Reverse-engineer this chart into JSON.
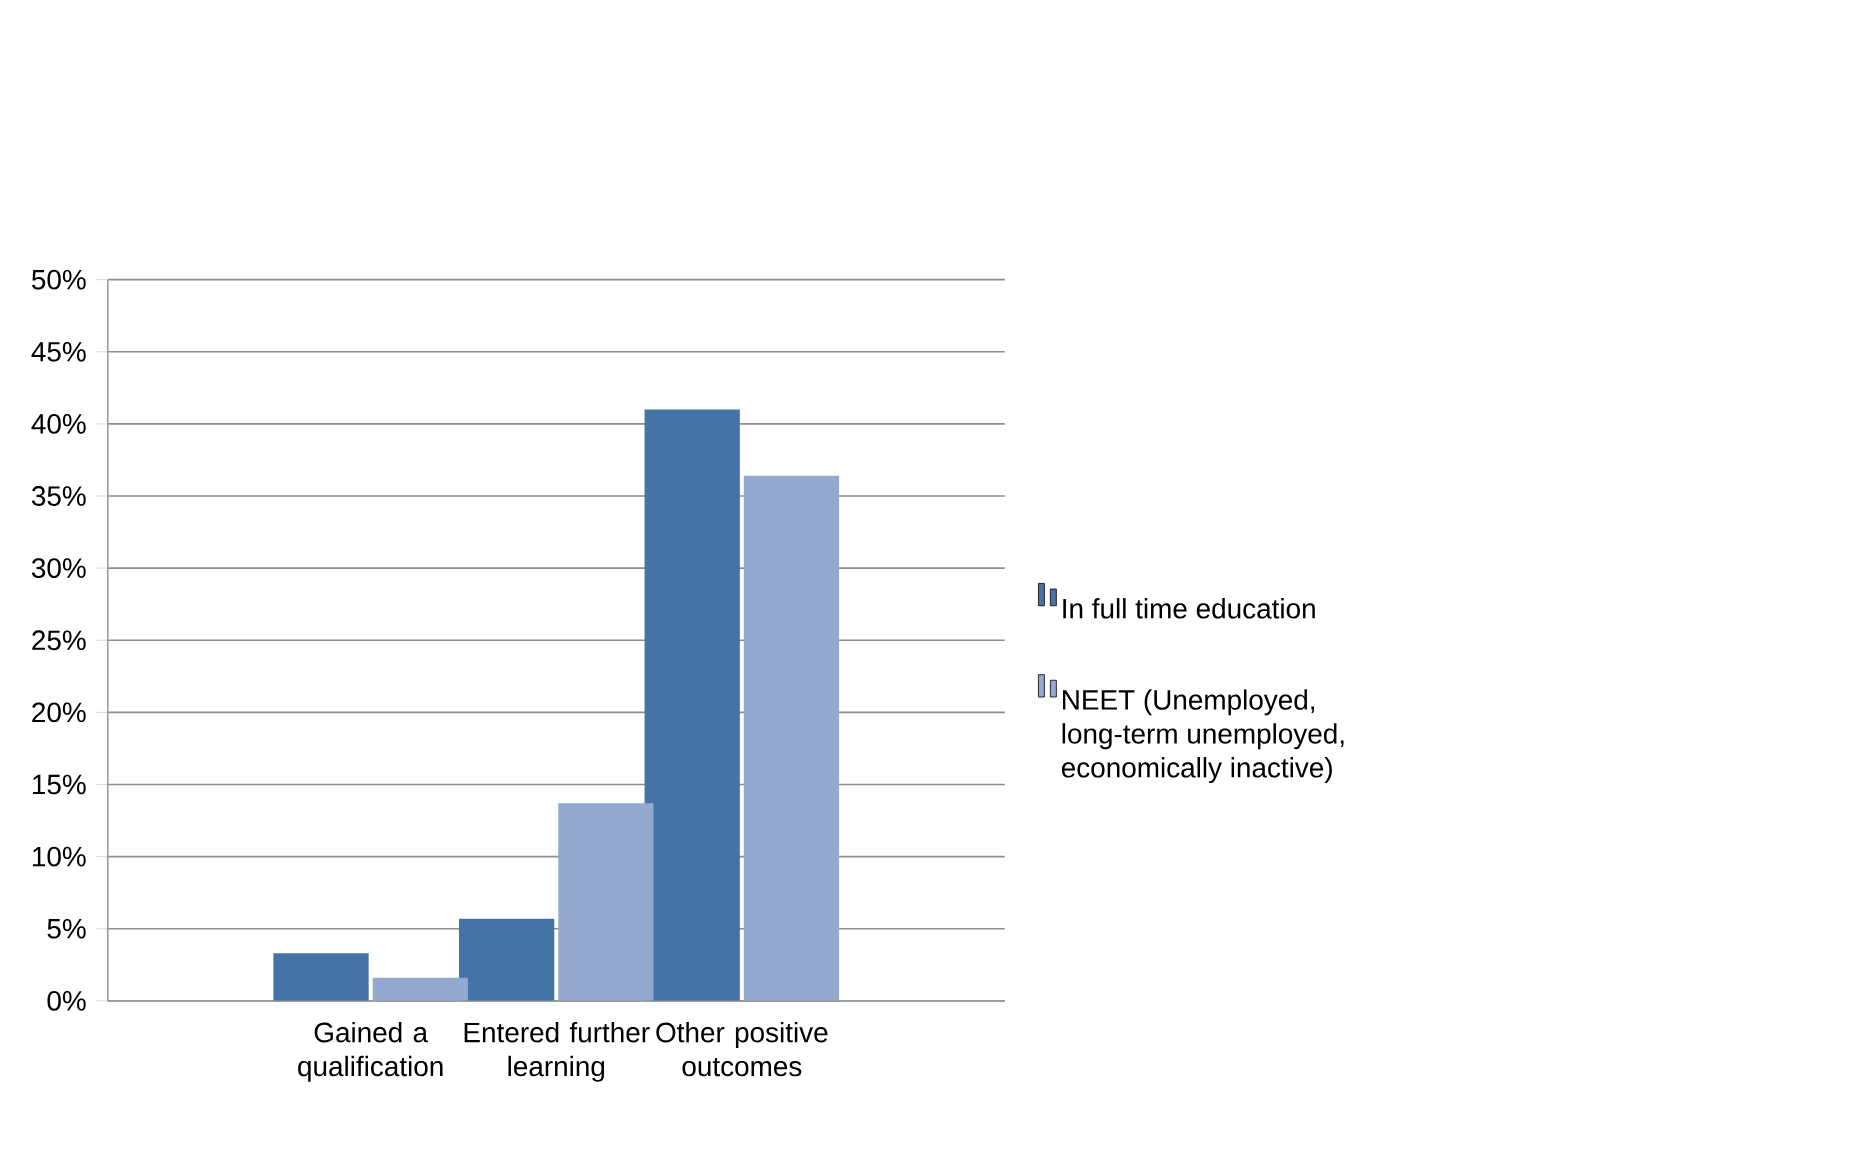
{
  "chart_data": {
    "type": "bar",
    "categories": [
      "Gained a qualification",
      "Entered further learning",
      "Other positive outcomes"
    ],
    "series": [
      {
        "name": "In full time education",
        "color": "#4572a7",
        "values": [
          3.3,
          5.7,
          41
        ]
      },
      {
        "name": "NEET (Unemployed, long-term unemployed, economically inactive)",
        "color": "#93a9cf",
        "values": [
          1.6,
          13.7,
          36.4
        ]
      }
    ],
    "ylim": [
      0,
      50
    ],
    "yticks": [
      {
        "value": 0,
        "label": "0%"
      },
      {
        "value": 5,
        "label": "5%"
      },
      {
        "value": 10,
        "label": "10%"
      },
      {
        "value": 15,
        "label": "15%"
      },
      {
        "value": 20,
        "label": "20%"
      },
      {
        "value": 25,
        "label": "25%"
      },
      {
        "value": 30,
        "label": "30%"
      },
      {
        "value": 35,
        "label": "35%"
      },
      {
        "value": 40,
        "label": "40%"
      },
      {
        "value": 45,
        "label": "45%"
      },
      {
        "value": 50,
        "label": "50%"
      }
    ],
    "grid": "y",
    "legend": "right"
  }
}
